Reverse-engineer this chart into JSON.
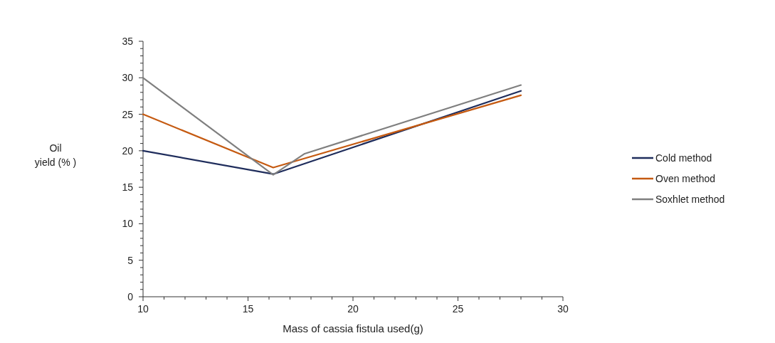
{
  "chart_data": {
    "type": "line",
    "xlabel": "Mass of cassia fistula used(g)",
    "ylabel": "Oil yield (% )",
    "xlim": [
      10,
      30
    ],
    "ylim": [
      0,
      35
    ],
    "xticks": [
      10,
      {
        "value": 11,
        "label": null
      },
      {
        "value": 12,
        "label": null
      },
      {
        "value": 13,
        "label": null
      },
      {
        "value": 14,
        "label": null
      },
      15,
      {
        "value": 16,
        "label": null
      },
      {
        "value": 17,
        "label": null
      },
      {
        "value": 18,
        "label": null
      },
      {
        "value": 19,
        "label": null
      },
      20,
      {
        "value": 21,
        "label": null
      },
      {
        "value": 22,
        "label": null
      },
      {
        "value": 23,
        "label": null
      },
      {
        "value": 24,
        "label": null
      },
      25,
      {
        "value": 26,
        "label": null
      },
      {
        "value": 27,
        "label": null
      },
      {
        "value": 28,
        "label": null
      },
      {
        "value": 29,
        "label": null
      },
      30
    ],
    "yticks": [
      0,
      {
        "value": 1,
        "label": null
      },
      {
        "value": 2,
        "label": null
      },
      {
        "value": 3,
        "label": null
      },
      {
        "value": 4,
        "label": null
      },
      5,
      {
        "value": 6,
        "label": null
      },
      {
        "value": 7,
        "label": null
      },
      {
        "value": 8,
        "label": null
      },
      {
        "value": 9,
        "label": null
      },
      10,
      {
        "value": 11,
        "label": null
      },
      {
        "value": 12,
        "label": null
      },
      {
        "value": 13,
        "label": null
      },
      {
        "value": 14,
        "label": null
      },
      15,
      {
        "value": 16,
        "label": null
      },
      {
        "value": 17,
        "label": null
      },
      {
        "value": 18,
        "label": null
      },
      {
        "value": 19,
        "label": null
      },
      20,
      {
        "value": 21,
        "label": null
      },
      {
        "value": 22,
        "label": null
      },
      {
        "value": 23,
        "label": null
      },
      {
        "value": 24,
        "label": null
      },
      25,
      {
        "value": 26,
        "label": null
      },
      {
        "value": 27,
        "label": null
      },
      {
        "value": 28,
        "label": null
      },
      {
        "value": 29,
        "label": null
      },
      30,
      {
        "value": 31,
        "label": null
      },
      {
        "value": 32,
        "label": null
      },
      {
        "value": 33,
        "label": null
      },
      {
        "value": 34,
        "label": null
      },
      35
    ],
    "legend": "right",
    "grid": false,
    "marker": "none",
    "line_style": "solid",
    "series": [
      {
        "name": "Cold method",
        "color": "#1f2d5c",
        "x": [
          10,
          16.2,
          28
        ],
        "values": [
          20,
          16.8,
          28.2
        ]
      },
      {
        "name": "Oven method",
        "color": "#c55a11",
        "x": [
          10,
          16.2,
          28
        ],
        "values": [
          25,
          17.7,
          27.6
        ]
      },
      {
        "name": "Soxhlet method",
        "color": "#7f7f7f",
        "x": [
          10,
          16.2,
          17.7,
          28
        ],
        "values": [
          30,
          16.7,
          19.6,
          29
        ]
      }
    ]
  }
}
